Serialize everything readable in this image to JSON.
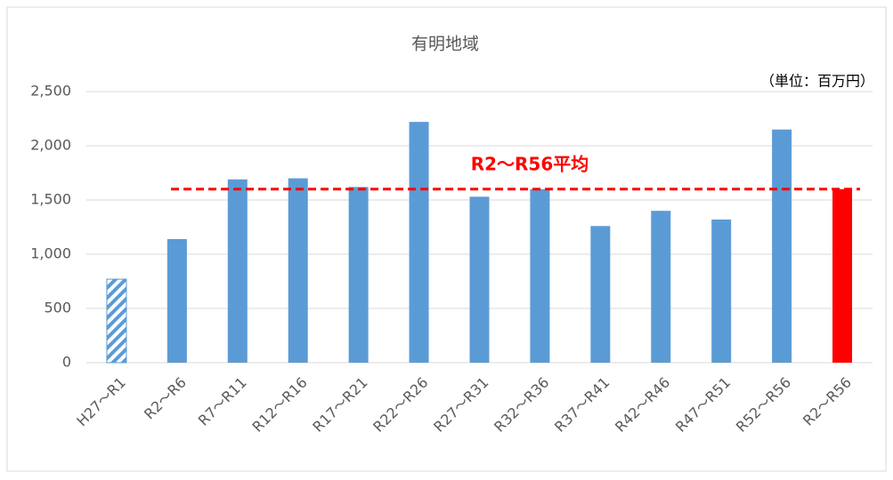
{
  "chart_data": {
    "type": "bar",
    "title": "有明地域",
    "unit_note": "（単位：百万円）",
    "categories": [
      "H27～R1",
      "R2～R6",
      "R7～R11",
      "R12～R16",
      "R17～R21",
      "R22～R26",
      "R27～R31",
      "R32～R36",
      "R37～R41",
      "R42～R46",
      "R47～R51",
      "R52～R56",
      "R2～R56"
    ],
    "values": [
      770,
      1140,
      1690,
      1700,
      1620,
      2220,
      1530,
      1600,
      1260,
      1400,
      1320,
      2150,
      1600
    ],
    "colors": [
      "#5b9bd5",
      "#5b9bd5",
      "#5b9bd5",
      "#5b9bd5",
      "#5b9bd5",
      "#5b9bd5",
      "#5b9bd5",
      "#5b9bd5",
      "#5b9bd5",
      "#5b9bd5",
      "#5b9bd5",
      "#5b9bd5",
      "#ff0000"
    ],
    "hatched": [
      0
    ],
    "ylim": [
      0,
      2500
    ],
    "yticks": [
      0,
      500,
      {
        "value": 1000,
        "label": "1,000"
      },
      {
        "value": 1500,
        "label": "1,500"
      },
      {
        "value": 2000,
        "label": "2,000"
      },
      {
        "value": 2500,
        "label": "2,500"
      }
    ],
    "grid": true,
    "reference_line": {
      "label": "R2～R56平均",
      "value": 1600,
      "color": "#ff0000"
    }
  }
}
